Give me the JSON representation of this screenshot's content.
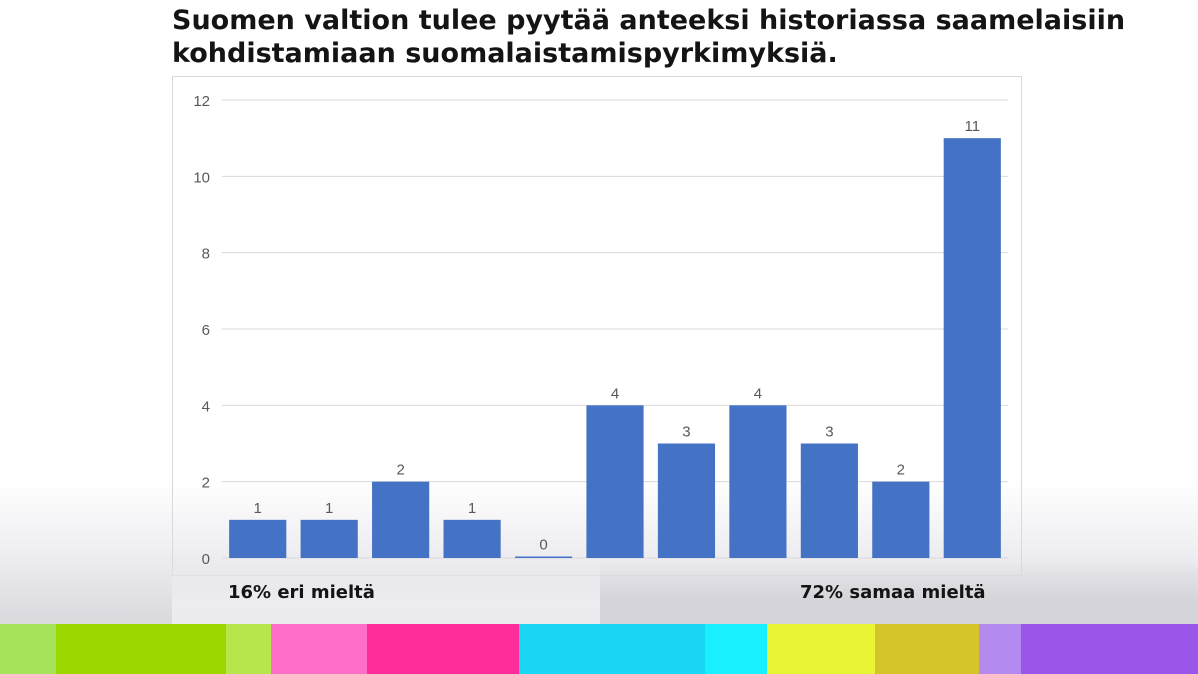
{
  "title_line1": "Suomen valtion tulee pyytää anteeksi historiassa saamelaisiin",
  "title_line2": "kohdistamiaan suomalaistamispyrkimyksiä.",
  "summary": {
    "disagree": "16% eri mieltä",
    "agree": "72% samaa mieltä"
  },
  "colors": {
    "bar": "#4472c4",
    "grid": "#d9d9d9",
    "tick_text": "#595959",
    "stripe": [
      "#a6e35a",
      "#9ad800",
      "#b6e64c",
      "#ff6ec7",
      "#ff2d9a",
      "#19d6f5",
      "#19f0ff",
      "#e8f535",
      "#d4c62a",
      "#b48af0",
      "#9b55e8"
    ]
  },
  "chart_data": {
    "type": "bar",
    "categories": [
      "",
      "",
      "",
      "",
      "",
      "",
      "",
      "",
      "",
      "",
      ""
    ],
    "values": [
      1,
      1,
      2,
      1,
      0,
      4,
      3,
      4,
      3,
      2,
      11
    ],
    "data_labels": [
      "1",
      "1",
      "2",
      "1",
      "0",
      "4",
      "3",
      "4",
      "3",
      "2",
      "11"
    ],
    "yticks": [
      "0",
      "2",
      "4",
      "6",
      "8",
      "10",
      "12"
    ],
    "ylim": [
      0,
      12
    ],
    "grid": true,
    "title": "Suomen valtion tulee pyytää anteeksi historiassa saamelaisiin kohdistamiaan suomalaistamispyrkimyksiä.",
    "xlabel": "",
    "ylabel": ""
  }
}
